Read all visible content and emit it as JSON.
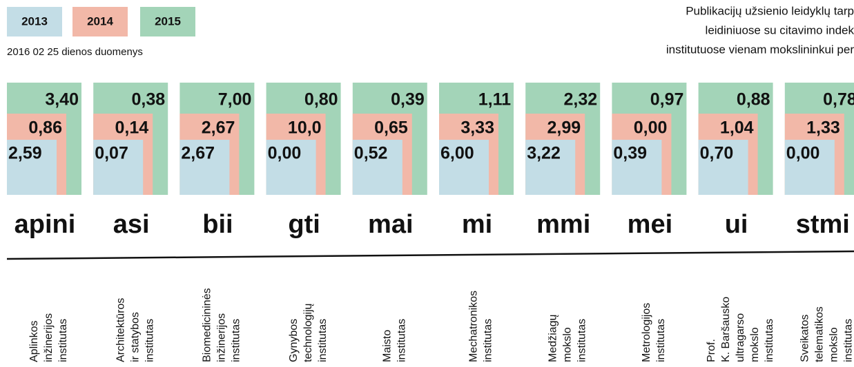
{
  "legend": [
    {
      "label": "2013",
      "color": "#c3dde6"
    },
    {
      "label": "2014",
      "color": "#f2b8a8"
    },
    {
      "label": "2015",
      "color": "#a3d4b8"
    }
  ],
  "subtitle": "2016 02 25 dienos duomenys",
  "title_lines": [
    "Publikacijų užsienio leidyklų tarp",
    "leidiniuose su citavimo indek",
    "institutuose vienam mokslininkui per"
  ],
  "institutes": [
    {
      "abbr": "apini",
      "name": [
        "Aplinkos",
        "inžinerijos",
        "institutas"
      ],
      "v2013": "2,59",
      "v2014": "0,86",
      "v2015": "3,40"
    },
    {
      "abbr": "asi",
      "name": [
        "Architektūros",
        "ir statybos",
        "institutas"
      ],
      "v2013": "0,07",
      "v2014": "0,14",
      "v2015": "0,38"
    },
    {
      "abbr": "bii",
      "name": [
        "Biomedicininės",
        "inžinerijos",
        "institutas"
      ],
      "v2013": "2,67",
      "v2014": "2,67",
      "v2015": "7,00"
    },
    {
      "abbr": "gti",
      "name": [
        "Gynybos",
        "technologijų",
        "institutas"
      ],
      "v2013": "0,00",
      "v2014": "10,0",
      "v2015": "0,80"
    },
    {
      "abbr": "mai",
      "name": [
        "Maisto",
        "institutas"
      ],
      "v2013": "0,52",
      "v2014": "0,65",
      "v2015": "0,39"
    },
    {
      "abbr": "mi",
      "name": [
        "Mechatronikos",
        "institutas"
      ],
      "v2013": "6,00",
      "v2014": "3,33",
      "v2015": "1,11"
    },
    {
      "abbr": "mmi",
      "name": [
        "Medžiagų",
        "mokslo",
        "institutas"
      ],
      "v2013": "3,22",
      "v2014": "2,99",
      "v2015": "2,32"
    },
    {
      "abbr": "mei",
      "name": [
        "Metrologijos",
        "institutas"
      ],
      "v2013": "0,39",
      "v2014": "0,00",
      "v2015": "0,97"
    },
    {
      "abbr": "ui",
      "name": [
        "Prof.",
        "K. Baršausko",
        "ultragarso",
        "mokslo",
        "institutas"
      ],
      "v2013": "0,70",
      "v2014": "1,04",
      "v2015": "0,88"
    },
    {
      "abbr": "stmi",
      "name": [
        "Sveikatos",
        "telematikos",
        "mokslo",
        "institutas"
      ],
      "v2013": "0,00",
      "v2014": "1,33",
      "v2015": "0,78"
    }
  ]
}
